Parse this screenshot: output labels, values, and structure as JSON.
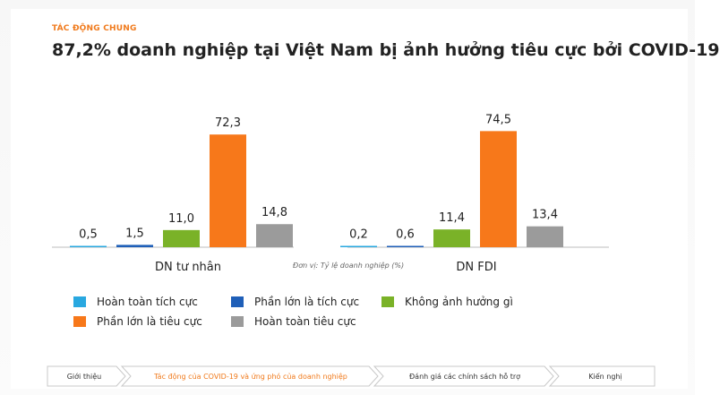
{
  "header": {
    "section_tag": "TÁC ĐỘNG CHUNG",
    "title": "87,2% doanh nghiệp tại Việt Nam bị ảnh hưởng tiêu cực bởi COVID-19"
  },
  "chart_data": {
    "type": "bar",
    "categories": [
      "DN tư nhân",
      "DN FDI"
    ],
    "series": [
      {
        "name": "Hoàn toàn tích cực",
        "color": "#29a8e0",
        "values": [
          0.5,
          0.2
        ],
        "labels": [
          "0,5",
          "0,2"
        ]
      },
      {
        "name": "Phần lớn là tích cực",
        "color": "#1f5fb8",
        "values": [
          1.5,
          0.6
        ],
        "labels": [
          "1,5",
          "0,6"
        ]
      },
      {
        "name": "Không ảnh hưởng gì",
        "color": "#7ab228",
        "values": [
          11.0,
          11.4
        ],
        "labels": [
          "11,0",
          "11,4"
        ]
      },
      {
        "name": "Phần lớn là tiêu cực",
        "color": "#f7781a",
        "values": [
          72.3,
          74.5
        ],
        "labels": [
          "72,3",
          "74,5"
        ]
      },
      {
        "name": "Hoàn toàn tiêu cực",
        "color": "#9b9b9b",
        "values": [
          14.8,
          13.4
        ],
        "labels": [
          "14,8",
          "13,4"
        ]
      }
    ],
    "unit_note": "Đơn vị: Tỷ lệ doanh nghiệp (%)",
    "ylim": [
      0,
      80
    ],
    "grid": false,
    "legend_position": "bottom"
  },
  "nav": {
    "steps": [
      {
        "label": "Giới thiệu",
        "active": false
      },
      {
        "label": "Tác động của COVID-19 và ứng phó của doanh nghiệp",
        "active": true
      },
      {
        "label": "Đánh giá các chính sách hỗ trợ",
        "active": false
      },
      {
        "label": "Kiến nghị",
        "active": false
      }
    ]
  }
}
